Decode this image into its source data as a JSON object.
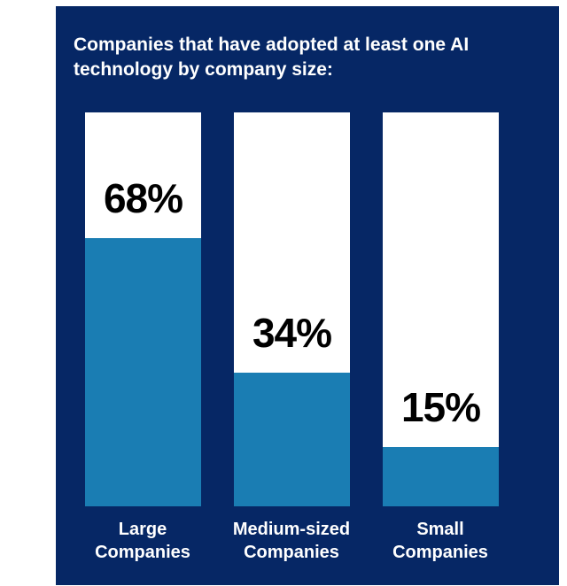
{
  "chart_data": {
    "type": "bar",
    "title": "Companies that have adopted at least one AI technology by company size:",
    "categories": [
      [
        "Large",
        "Companies"
      ],
      [
        "Medium-sized",
        "Companies"
      ],
      [
        "Small",
        "Companies"
      ]
    ],
    "values": [
      68,
      34,
      15
    ],
    "value_labels": [
      "68%",
      "34%",
      "15%"
    ],
    "unit": "%",
    "ylim": [
      0,
      100
    ],
    "grid": false,
    "legend": "none",
    "colors": {
      "background": "#062765",
      "track": "#ffffff",
      "fill": "#1a7db3",
      "title_text": "#ffffff",
      "value_text": "#000000"
    }
  }
}
